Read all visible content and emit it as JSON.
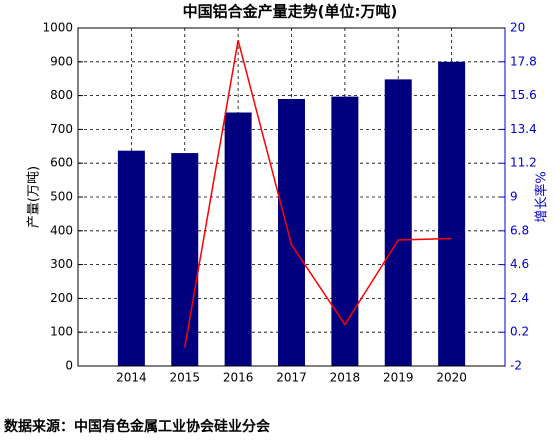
{
  "chart_data": {
    "type": "bar-line",
    "title": "中国铝合金产量走势(单位:万吨)",
    "categories": [
      "2014",
      "2015",
      "2016",
      "2017",
      "2018",
      "2019",
      "2020"
    ],
    "series": [
      {
        "name": "产量",
        "color": "#00007f",
        "values": [
          637,
          630,
          750,
          790,
          797,
          848,
          900
        ]
      },
      {
        "name": "增长率",
        "color": "#ff0000",
        "axis": "y2",
        "values": [
          null,
          -0.8,
          19.2,
          5.9,
          0.7,
          6.2,
          6.3
        ]
      }
    ],
    "ylabel": "产量(万吨)",
    "y2label": "增长率%",
    "ylim": [
      0,
      1000
    ],
    "yticks": [
      0,
      100,
      200,
      300,
      400,
      500,
      600,
      700,
      800,
      900,
      1000
    ],
    "y2lim": [
      -2,
      20
    ],
    "y2ticks": [
      -2,
      0.2,
      2.4,
      4.6,
      6.8,
      9,
      11.2,
      13.4,
      15.6,
      17.8,
      20
    ],
    "grid": true
  },
  "source": "数据来源：中国有色金属工业协会硅业分会"
}
